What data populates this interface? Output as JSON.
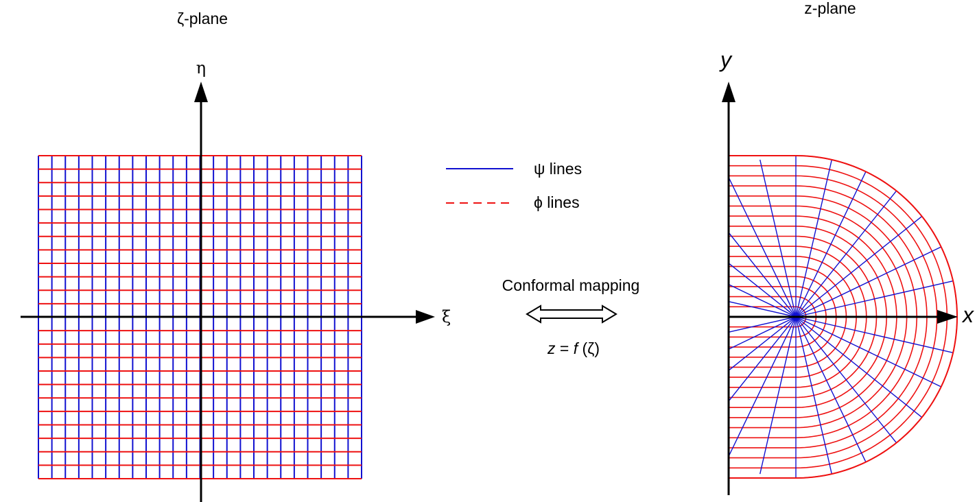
{
  "left_panel": {
    "title": "ζ-plane",
    "vertical_axis_label": "η",
    "horizontal_axis_label": "ξ"
  },
  "right_panel": {
    "title": "z-plane",
    "vertical_axis_label": "y",
    "horizontal_axis_label": "x"
  },
  "legend": {
    "psi_label": "ψ lines",
    "phi_label": "ϕ lines"
  },
  "mapping": {
    "label": "Conformal mapping",
    "formula_z": "z",
    "formula_eq": " = ",
    "formula_f": "f",
    "formula_arg": " (ζ)"
  },
  "colors": {
    "psi_lines": "#1010d0",
    "phi_lines": "#ee1111",
    "axes": "#000000"
  }
}
